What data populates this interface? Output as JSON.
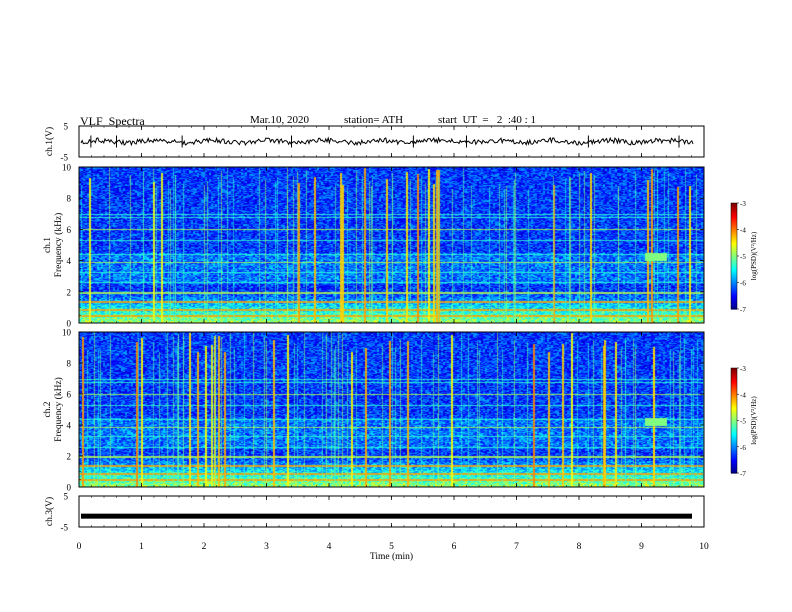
{
  "header": {
    "title": "VLF  Spectra",
    "date": "Mar.10, 2020",
    "station": "station= ATH",
    "start": "start  UT  =   2  :40 : 1"
  },
  "chart_data": [
    {
      "type": "line",
      "ylabel": "ch.1(V)",
      "ylim": [
        -5,
        5
      ],
      "yticks": [
        "5",
        "-5"
      ],
      "xlim": [
        0,
        10
      ],
      "series": [
        {
          "values_description_free": true,
          "level": 0
        }
      ]
    },
    {
      "type": "heatmap",
      "ylabel": "ch.1\nFrequency (kHz)",
      "ylabel_top": "ch.1",
      "ylabel_bottom": "Frequency (kHz)",
      "ylim": [
        0,
        10
      ],
      "yticks": [
        "0",
        "2",
        "4",
        "6",
        "8",
        "10"
      ],
      "xlim": [
        0,
        10
      ],
      "colorbar": {
        "label": "log(PSD)(V²/Hz)",
        "ticks": [
          "-3",
          "-4",
          "-5",
          "-6",
          "-7"
        ],
        "range": [
          -7,
          -3
        ]
      }
    },
    {
      "type": "heatmap",
      "ylabel_top": "ch.2",
      "ylabel_bottom": "Frequency (kHz)",
      "ylim": [
        0,
        10
      ],
      "yticks": [
        "0",
        "2",
        "4",
        "6",
        "8",
        "10"
      ],
      "xlim": [
        0,
        10
      ],
      "colorbar": {
        "label": "log(PSD)(V²/Hz)",
        "ticks": [
          "-3",
          "-4",
          "-5",
          "-6",
          "-7"
        ],
        "range": [
          -7,
          -3
        ]
      }
    },
    {
      "type": "line",
      "ylabel": "ch.3(V)",
      "ylim": [
        -5,
        5
      ],
      "yticks": [
        "5",
        "-5"
      ],
      "xlim": [
        0,
        10
      ],
      "series": [
        {
          "level": -1.5
        }
      ]
    }
  ],
  "xaxis": {
    "label": "Time  (min)",
    "ticks": [
      "0",
      "1",
      "2",
      "3",
      "4",
      "5",
      "6",
      "7",
      "8",
      "9",
      "10"
    ],
    "range": [
      0,
      10
    ]
  },
  "colors": {
    "background_low": "#000033",
    "band": "#1e50ff",
    "emission": "#55ff55",
    "strong": "#ff3300"
  }
}
